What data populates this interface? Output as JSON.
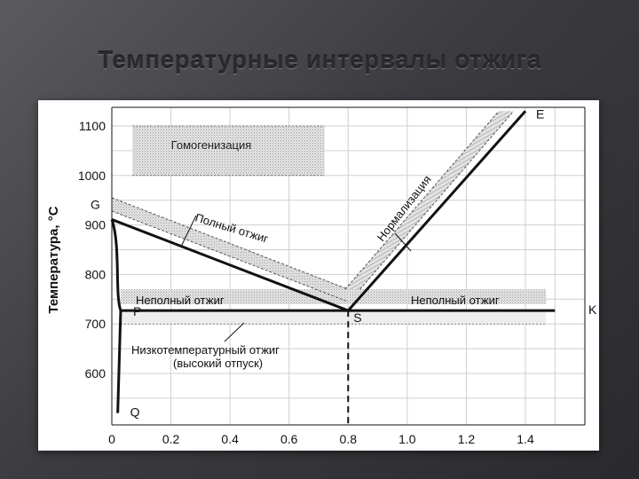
{
  "slide": {
    "title": "Температурные интервалы отжига"
  },
  "chart_data": {
    "type": "line",
    "title": "",
    "ylabel": "Температура, °С",
    "xlabel": "",
    "xlim": [
      0,
      1.5
    ],
    "ylim": [
      500,
      1130
    ],
    "x_ticks": [
      "0",
      "0.2",
      "0.4",
      "0.6",
      "0.8",
      "1.0",
      "1.2",
      "1.4"
    ],
    "y_ticks": [
      "600",
      "700",
      "800",
      "900",
      "1000",
      "1100"
    ],
    "points": [
      {
        "label": "G",
        "x": 0,
        "y": 911
      },
      {
        "label": "P",
        "x": 0.03,
        "y": 727
      },
      {
        "label": "S",
        "x": 0.8,
        "y": 727
      },
      {
        "label": "K",
        "x": 1.5,
        "y": 727
      },
      {
        "label": "E",
        "x": 1.4,
        "y": 1130
      },
      {
        "label": "Q",
        "x": 0.02,
        "y": 520
      }
    ],
    "lines": [
      {
        "name": "GS",
        "x": [
          0,
          0.8
        ],
        "y": [
          911,
          727
        ]
      },
      {
        "name": "SE",
        "x": [
          0.8,
          1.4
        ],
        "y": [
          727,
          1130
        ]
      },
      {
        "name": "PSK",
        "x": [
          0.03,
          1.5
        ],
        "y": [
          727,
          727
        ]
      },
      {
        "name": "PQ",
        "x": [
          0.03,
          0.02
        ],
        "y": [
          727,
          520
        ]
      }
    ],
    "regions": [
      {
        "name": "Гомогенизация",
        "x": [
          0.05,
          0.7
        ],
        "y": [
          1000,
          1100
        ]
      },
      {
        "name": "Полный отжиг",
        "upper": {
          "x": [
            0,
            0.8
          ],
          "y": [
            960,
            770
          ]
        },
        "lower": {
          "x": [
            0,
            0.8
          ],
          "y": [
            930,
            745
          ]
        }
      },
      {
        "name": "Нормализация",
        "x": [
          0.8,
          1.35
        ],
        "y_start": [
          770,
          745
        ],
        "y_end": [
          1140,
          1140
        ]
      },
      {
        "name": "Неполный отжиг",
        "x": [
          0.03,
          1.45
        ],
        "y": [
          740,
          770
        ]
      },
      {
        "name": "Низкотемпературный отжиг (высокий отпуск)",
        "x": [
          0.03,
          1.45
        ],
        "y": [
          700,
          727
        ]
      }
    ],
    "region_labels": {
      "homogenization": "Гомогенизация",
      "full_annealing": "Полный отжиг",
      "normalization": "Нормализация",
      "partial_left": "Неполный отжиг",
      "partial_right": "Неполный отжиг",
      "lowtemp_line1": "Низкотемпературный отжиг",
      "lowtemp_line2": "(высокий отпуск)"
    },
    "grid": true,
    "dashed_vertical_x": 0.8
  }
}
